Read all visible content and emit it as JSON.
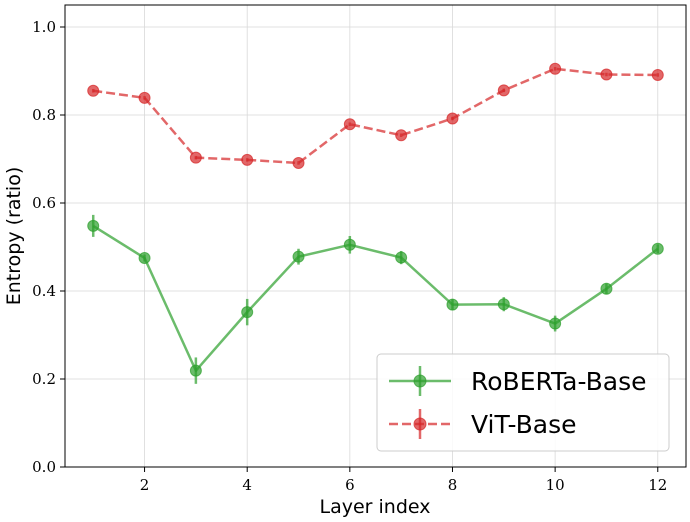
{
  "chart_data": {
    "type": "line",
    "xlabel": "Layer index",
    "ylabel": "Entropy (ratio)",
    "xlim": [
      0.45,
      12.55
    ],
    "ylim": [
      0.0,
      1.05
    ],
    "xticks": [
      2,
      4,
      6,
      8,
      10,
      12
    ],
    "yticks": [
      0.0,
      0.2,
      0.4,
      0.6,
      0.8,
      1.0
    ],
    "xtick_labels": [
      "2",
      "4",
      "6",
      "8",
      "10",
      "12"
    ],
    "ytick_labels": [
      "0.0",
      "0.2",
      "0.4",
      "0.6",
      "0.8",
      "1.0"
    ],
    "grid": true,
    "legend_position": "lower-right",
    "series": [
      {
        "name": "RoBERTa-Base",
        "color": "#2ca02c",
        "linestyle": "solid",
        "x": [
          1,
          2,
          3,
          4,
          5,
          6,
          7,
          8,
          9,
          10,
          11,
          12
        ],
        "y": [
          0.548,
          0.475,
          0.219,
          0.352,
          0.478,
          0.505,
          0.476,
          0.369,
          0.37,
          0.326,
          0.405,
          0.496
        ],
        "err": [
          0.025,
          0.008,
          0.03,
          0.03,
          0.018,
          0.02,
          0.015,
          0.012,
          0.016,
          0.018,
          0.012,
          0.01
        ]
      },
      {
        "name": "ViT-Base",
        "color": "#d62728",
        "linestyle": "dashed",
        "x": [
          1,
          2,
          3,
          4,
          5,
          6,
          7,
          8,
          9,
          10,
          11,
          12
        ],
        "y": [
          0.855,
          0.839,
          0.703,
          0.698,
          0.691,
          0.779,
          0.754,
          0.792,
          0.856,
          0.905,
          0.892,
          0.891
        ],
        "err": [
          0.004,
          0.004,
          0.004,
          0.004,
          0.004,
          0.004,
          0.004,
          0.004,
          0.004,
          0.004,
          0.004,
          0.004
        ]
      }
    ]
  }
}
